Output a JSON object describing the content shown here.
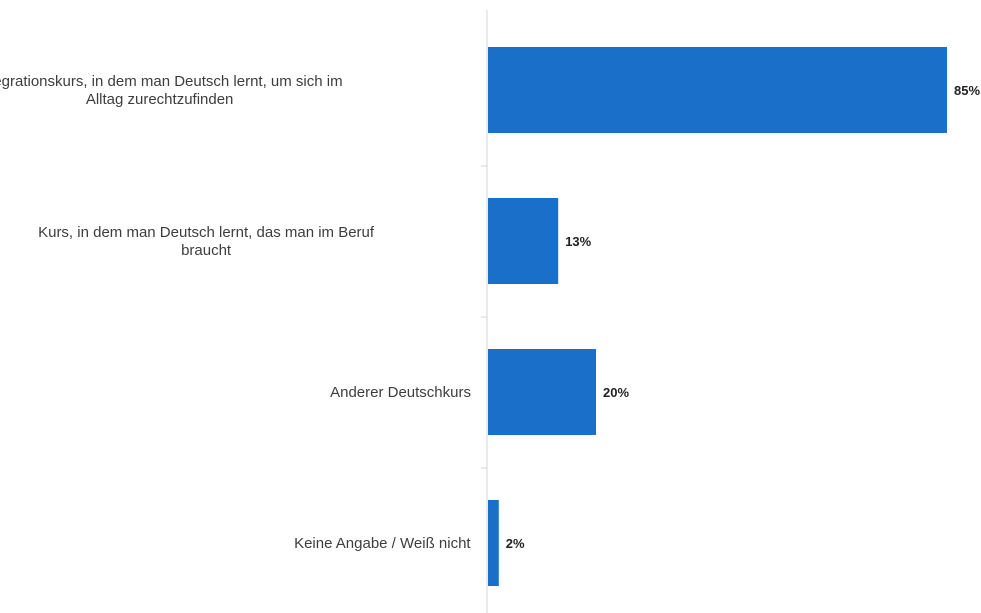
{
  "chart_data": {
    "type": "bar",
    "orientation": "horizontal",
    "categories": [
      [
        "Integrationskurs, in dem man Deutsch lernt, um sich im",
        "Alltag zurechtzufinden"
      ],
      [
        "Kurs, in dem man Deutsch lernt, das man im Beruf",
        "braucht"
      ],
      [
        "Anderer Deutschkurs"
      ],
      [
        "Keine Angabe / Weiß nicht"
      ]
    ],
    "values": [
      85,
      13,
      20,
      2
    ],
    "value_labels": [
      "85%",
      "13%",
      "20%",
      "2%"
    ],
    "unit": "%",
    "xlim": [
      0,
      85
    ],
    "bar_color": "#1a6fc9",
    "axis_color": "#d6d6d6",
    "grid": false,
    "legend": false
  }
}
